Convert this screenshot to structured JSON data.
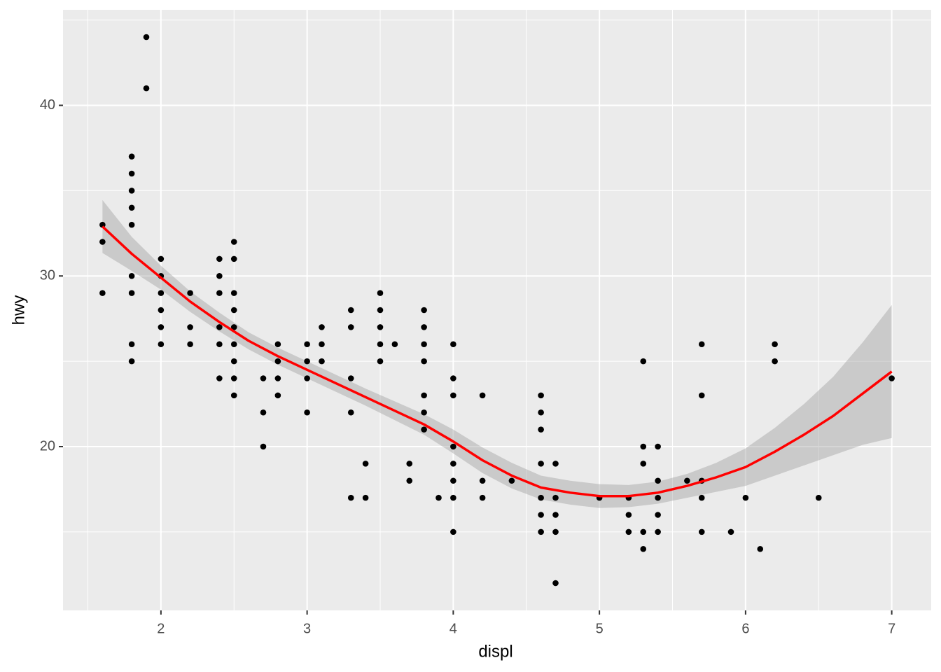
{
  "chart_data": {
    "type": "scatter",
    "xlabel": "displ",
    "ylabel": "hwy",
    "xlim": [
      1.33,
      7.27
    ],
    "ylim": [
      10.4,
      45.6
    ],
    "xticks": [
      2,
      3,
      4,
      5,
      6,
      7
    ],
    "yticks": [
      20,
      30,
      40
    ],
    "xminor": [
      1.5,
      2.5,
      3.5,
      4.5,
      5.5,
      6.5
    ],
    "yminor": [
      15,
      25,
      35,
      45
    ],
    "grid": true,
    "color": "#000000",
    "x": [
      1.6,
      1.6,
      1.6,
      1.8,
      1.8,
      1.8,
      1.8,
      1.8,
      1.8,
      1.8,
      1.8,
      1.8,
      1.9,
      1.9,
      2.0,
      2.0,
      2.0,
      2.0,
      2.0,
      2.0,
      2.2,
      2.2,
      2.2,
      2.4,
      2.4,
      2.4,
      2.4,
      2.4,
      2.4,
      2.5,
      2.5,
      2.5,
      2.5,
      2.5,
      2.5,
      2.5,
      2.5,
      2.5,
      2.7,
      2.7,
      2.7,
      2.8,
      2.8,
      2.8,
      2.8,
      3.0,
      3.0,
      3.0,
      3.0,
      3.1,
      3.1,
      3.1,
      3.3,
      3.3,
      3.3,
      3.3,
      3.3,
      3.4,
      3.4,
      3.5,
      3.5,
      3.5,
      3.5,
      3.5,
      3.6,
      3.7,
      3.7,
      3.8,
      3.8,
      3.8,
      3.8,
      3.8,
      3.8,
      3.8,
      3.9,
      4.0,
      4.0,
      4.0,
      4.0,
      4.0,
      4.0,
      4.0,
      4.0,
      4.2,
      4.2,
      4.2,
      4.4,
      4.6,
      4.6,
      4.6,
      4.6,
      4.6,
      4.6,
      4.6,
      4.7,
      4.7,
      4.7,
      4.7,
      4.7,
      5.0,
      5.2,
      5.2,
      5.2,
      5.3,
      5.3,
      5.3,
      5.3,
      5.3,
      5.4,
      5.4,
      5.4,
      5.4,
      5.4,
      5.6,
      5.7,
      5.7,
      5.7,
      5.7,
      5.7,
      5.9,
      6.0,
      6.1,
      6.2,
      6.2,
      6.5,
      7.0
    ],
    "values": [
      33,
      32,
      29,
      37,
      36,
      35,
      34,
      33,
      30,
      29,
      26,
      25,
      44,
      41,
      31,
      30,
      29,
      28,
      27,
      26,
      29,
      27,
      26,
      31,
      30,
      29,
      27,
      26,
      24,
      32,
      31,
      29,
      28,
      27,
      26,
      25,
      24,
      23,
      24,
      22,
      20,
      26,
      25,
      24,
      23,
      26,
      25,
      24,
      22,
      27,
      26,
      25,
      28,
      27,
      24,
      22,
      17,
      19,
      17,
      29,
      28,
      27,
      26,
      25,
      26,
      19,
      18,
      28,
      27,
      26,
      25,
      23,
      22,
      21,
      17,
      26,
      24,
      23,
      20,
      19,
      18,
      17,
      15,
      23,
      18,
      17,
      18,
      23,
      22,
      21,
      19,
      17,
      16,
      15,
      19,
      17,
      16,
      15,
      12,
      17,
      17,
      16,
      15,
      25,
      20,
      19,
      15,
      14,
      20,
      18,
      17,
      16,
      15,
      18,
      26,
      23,
      18,
      17,
      15,
      15,
      17,
      14,
      26,
      25,
      17,
      24
    ],
    "smooth": {
      "color": "#FF0000",
      "band_color": "#999999",
      "x": [
        1.6,
        1.8,
        2.0,
        2.2,
        2.4,
        2.6,
        2.8,
        3.0,
        3.2,
        3.4,
        3.6,
        3.8,
        4.0,
        4.2,
        4.4,
        4.6,
        4.8,
        5.0,
        5.2,
        5.4,
        5.6,
        5.8,
        6.0,
        6.2,
        6.4,
        6.6,
        6.8,
        7.0
      ],
      "values": [
        32.9,
        31.3,
        29.9,
        28.5,
        27.3,
        26.2,
        25.3,
        24.5,
        23.7,
        22.9,
        22.1,
        21.3,
        20.3,
        19.2,
        18.3,
        17.6,
        17.3,
        17.1,
        17.1,
        17.3,
        17.7,
        18.2,
        18.8,
        19.7,
        20.7,
        21.8,
        23.1,
        24.4
      ],
      "lower": [
        31.35,
        30.3,
        29.2,
        27.9,
        26.75,
        25.7,
        24.8,
        24.0,
        23.2,
        22.4,
        21.55,
        20.7,
        19.6,
        18.45,
        17.55,
        16.9,
        16.6,
        16.4,
        16.45,
        16.65,
        17.0,
        17.35,
        17.7,
        18.3,
        18.9,
        19.5,
        20.1,
        20.5
      ],
      "upper": [
        34.45,
        32.3,
        30.6,
        29.1,
        27.85,
        26.7,
        25.8,
        25.0,
        24.2,
        23.4,
        22.65,
        21.9,
        21.0,
        19.95,
        19.05,
        18.3,
        18.0,
        17.8,
        17.75,
        17.95,
        18.4,
        19.05,
        19.9,
        21.1,
        22.5,
        24.1,
        26.1,
        28.3
      ]
    }
  }
}
